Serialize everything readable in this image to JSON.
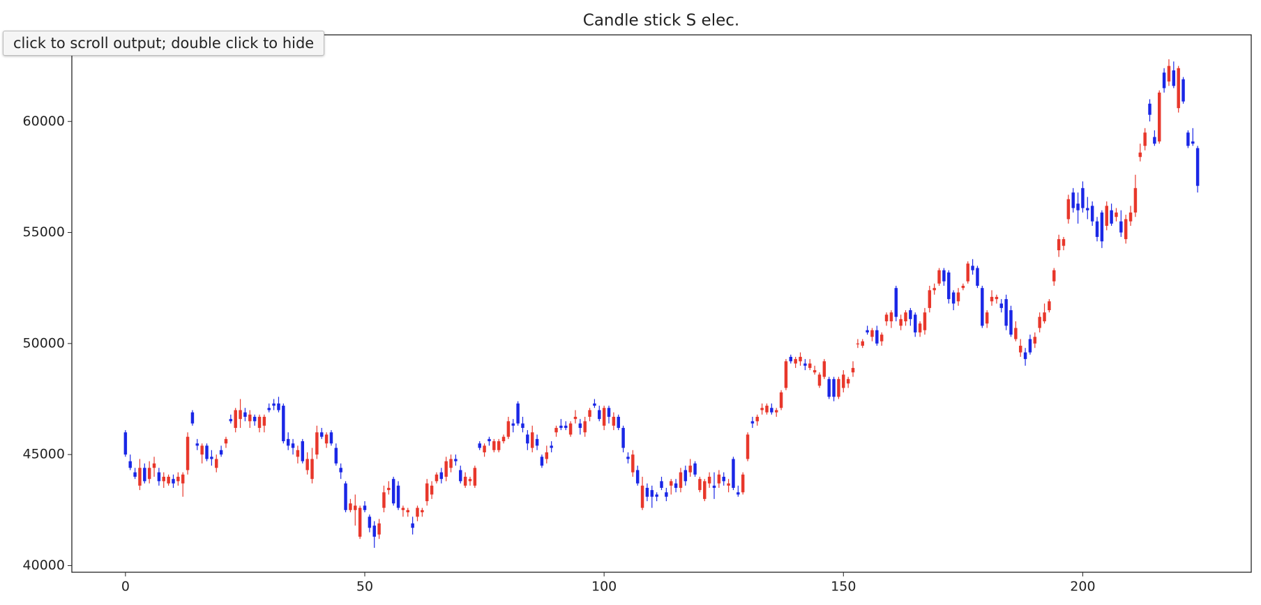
{
  "ui": {
    "tooltip": "click to scroll output; double click to hide"
  },
  "chart_data": {
    "type": "candlestick",
    "title": "Candle stick S elec.",
    "up_color": "#e8372b",
    "down_color": "#1a27e6",
    "grid": false,
    "xlim": [
      -11.2,
      235.2
    ],
    "ylim": [
      39700,
      63900
    ],
    "xticks": [
      0,
      50,
      100,
      150,
      200
    ],
    "yticks": [
      40000,
      45000,
      50000,
      55000,
      60000
    ],
    "x": [
      0,
      1,
      2,
      3,
      4,
      5,
      6,
      7,
      8,
      9,
      10,
      11,
      12,
      13,
      14,
      15,
      16,
      17,
      18,
      19,
      20,
      21,
      22,
      23,
      24,
      25,
      26,
      27,
      28,
      29,
      30,
      31,
      32,
      33,
      34,
      35,
      36,
      37,
      38,
      39,
      40,
      41,
      42,
      43,
      44,
      45,
      46,
      47,
      48,
      49,
      50,
      51,
      52,
      53,
      54,
      55,
      56,
      57,
      58,
      59,
      60,
      61,
      62,
      63,
      64,
      65,
      66,
      67,
      68,
      69,
      70,
      71,
      72,
      73,
      74,
      75,
      76,
      77,
      78,
      79,
      80,
      81,
      82,
      83,
      84,
      85,
      86,
      87,
      88,
      89,
      90,
      91,
      92,
      93,
      94,
      95,
      96,
      97,
      98,
      99,
      100,
      101,
      102,
      103,
      104,
      105,
      106,
      107,
      108,
      109,
      110,
      111,
      112,
      113,
      114,
      115,
      116,
      117,
      118,
      119,
      120,
      121,
      122,
      123,
      124,
      125,
      126,
      127,
      128,
      129,
      130,
      131,
      132,
      133,
      134,
      135,
      136,
      137,
      138,
      139,
      140,
      141,
      142,
      143,
      144,
      145,
      146,
      147,
      148,
      149,
      150,
      151,
      152,
      153,
      154,
      155,
      156,
      157,
      158,
      159,
      160,
      161,
      162,
      163,
      164,
      165,
      166,
      167,
      168,
      169,
      170,
      171,
      172,
      173,
      174,
      175,
      176,
      177,
      178,
      179,
      180,
      181,
      182,
      183,
      184,
      185,
      186,
      187,
      188,
      189,
      190,
      191,
      192,
      193,
      194,
      195,
      196,
      197,
      198,
      199,
      200,
      201,
      202,
      203,
      204,
      205,
      206,
      207,
      208,
      209,
      210,
      211,
      212,
      213,
      214,
      215,
      216,
      217,
      218,
      219,
      220,
      221,
      222,
      223,
      224
    ],
    "open": [
      46000,
      44700,
      44200,
      43600,
      44400,
      43900,
      44400,
      44200,
      43800,
      43700,
      43900,
      43800,
      43700,
      44300,
      46900,
      45500,
      45000,
      45400,
      44900,
      44400,
      45200,
      45500,
      46600,
      46200,
      46600,
      46900,
      46500,
      46700,
      46200,
      46300,
      47100,
      47300,
      47300,
      47200,
      45700,
      45500,
      44900,
      45600,
      44300,
      43900,
      45000,
      46000,
      45500,
      46000,
      45300,
      44400,
      43700,
      42500,
      42500,
      41300,
      42700,
      42200,
      41800,
      41400,
      42600,
      43400,
      43900,
      43600,
      42500,
      42400,
      41900,
      42200,
      42400,
      42900,
      43200,
      43800,
      44200,
      44000,
      44400,
      44800,
      44300,
      43600,
      43800,
      43600,
      45500,
      45100,
      45700,
      45200,
      45200,
      45600,
      45800,
      46400,
      47300,
      46400,
      45900,
      45300,
      45700,
      44900,
      44800,
      45400,
      46000,
      46300,
      46300,
      45900,
      46600,
      46400,
      46000,
      46700,
      47300,
      47000,
      46300,
      47100,
      46300,
      46700,
      46200,
      44900,
      44200,
      44300,
      42600,
      43500,
      43400,
      43200,
      43800,
      43300,
      43600,
      43700,
      43500,
      44300,
      44200,
      44600,
      43400,
      43000,
      43700,
      43600,
      43700,
      44000,
      43600,
      44800,
      43300,
      43300,
      44800,
      46500,
      46500,
      47000,
      46900,
      47100,
      46900,
      47100,
      48000,
      49400,
      49100,
      49200,
      49100,
      48900,
      48700,
      48100,
      48500,
      48400,
      48400,
      47600,
      48000,
      48200,
      48700,
      50000,
      49900,
      50600,
      50300,
      50600,
      50100,
      51000,
      51000,
      52500,
      50800,
      51000,
      51500,
      51300,
      50500,
      50600,
      51600,
      52400,
      52700,
      53300,
      53200,
      52300,
      51900,
      52500,
      52800,
      53500,
      53400,
      52500,
      50900,
      51900,
      52000,
      51800,
      52000,
      51500,
      50200,
      49600,
      49600,
      50200,
      50000,
      50700,
      51000,
      51500,
      52800,
      54200,
      54400,
      55600,
      56800,
      56300,
      57000,
      56100,
      56200,
      55500,
      55900,
      55300,
      56000,
      55700,
      55500,
      54700,
      55500,
      55900,
      58400,
      58900,
      60800,
      59300,
      59100,
      62200,
      61800,
      62300,
      60600,
      61900,
      59500,
      59100,
      58800
    ],
    "high": [
      46100,
      45000,
      44400,
      44800,
      44600,
      44700,
      44900,
      44400,
      44200,
      44100,
      44100,
      44200,
      44200,
      46000,
      47000,
      45700,
      45500,
      45500,
      45200,
      45000,
      45400,
      45800,
      46800,
      47100,
      47500,
      47100,
      47000,
      46800,
      46800,
      46800,
      47300,
      47500,
      47600,
      47300,
      46000,
      45700,
      45400,
      45700,
      45100,
      45300,
      46300,
      46200,
      46000,
      46100,
      45500,
      44600,
      43800,
      43000,
      43200,
      42700,
      42900,
      42300,
      42000,
      42100,
      43600,
      43800,
      44000,
      43800,
      42700,
      42600,
      42200,
      42700,
      42600,
      43900,
      43800,
      44200,
      44400,
      44900,
      45000,
      45000,
      44500,
      44200,
      44000,
      44500,
      45600,
      45500,
      45800,
      45700,
      45700,
      45900,
      46700,
      46600,
      47400,
      46700,
      46100,
      46300,
      45900,
      45000,
      45400,
      45600,
      46300,
      46600,
      46500,
      46500,
      47000,
      46600,
      46700,
      47100,
      47500,
      47200,
      47200,
      47200,
      46900,
      46800,
      46300,
      45100,
      45200,
      44500,
      44000,
      43700,
      43600,
      43300,
      44000,
      43500,
      43900,
      43900,
      44400,
      44500,
      44800,
      44700,
      44000,
      43900,
      44200,
      44200,
      44300,
      44200,
      43900,
      44900,
      43600,
      44200,
      46000,
      46700,
      46800,
      47300,
      47300,
      47300,
      47100,
      47900,
      49300,
      49500,
      49400,
      49600,
      49300,
      49300,
      49000,
      48700,
      49300,
      48500,
      48500,
      48500,
      48800,
      48500,
      49200,
      50200,
      50200,
      50800,
      50700,
      50800,
      50500,
      51400,
      51500,
      52600,
      51300,
      51500,
      51600,
      51400,
      51000,
      51600,
      52600,
      52700,
      53400,
      53400,
      53300,
      52400,
      52500,
      52700,
      53700,
      53800,
      53500,
      52600,
      51500,
      52400,
      52200,
      52000,
      52200,
      51700,
      51000,
      50200,
      49800,
      50400,
      50500,
      51400,
      51800,
      52000,
      53400,
      54900,
      54800,
      56700,
      57000,
      56800,
      57300,
      56600,
      56400,
      55700,
      56000,
      56400,
      56300,
      56100,
      56000,
      55800,
      56200,
      57600,
      59000,
      59700,
      61000,
      59600,
      61400,
      62400,
      62800,
      62700,
      62500,
      62000,
      59600,
      59700,
      58900
    ],
    "low": [
      44900,
      44300,
      43900,
      43400,
      43700,
      43700,
      44000,
      43600,
      43500,
      43600,
      43500,
      43600,
      43100,
      44100,
      46300,
      45200,
      44600,
      44700,
      44500,
      44200,
      44900,
      45300,
      46400,
      46000,
      46200,
      46500,
      46200,
      46300,
      46000,
      46000,
      46900,
      47000,
      46900,
      45500,
      45200,
      45000,
      44600,
      44600,
      44100,
      43700,
      44800,
      45700,
      45300,
      45400,
      44500,
      43900,
      42400,
      42400,
      41800,
      41200,
      42400,
      41500,
      40800,
      41200,
      42400,
      43200,
      42700,
      42500,
      42200,
      42200,
      41400,
      42000,
      42200,
      42700,
      43000,
      43700,
      43700,
      43800,
      44200,
      44500,
      43700,
      43500,
      43600,
      43500,
      45200,
      44900,
      45400,
      45100,
      45100,
      45500,
      45700,
      46000,
      46300,
      46000,
      45200,
      45100,
      45200,
      44400,
      44600,
      45100,
      45800,
      46100,
      46100,
      45800,
      46400,
      45900,
      45800,
      46500,
      47100,
      46500,
      46100,
      46400,
      46100,
      46100,
      45100,
      44600,
      44000,
      43600,
      42500,
      42900,
      42600,
      42900,
      43400,
      42900,
      43200,
      43300,
      43300,
      43600,
      44000,
      44000,
      43300,
      42900,
      43500,
      43000,
      43500,
      43600,
      43300,
      43400,
      43100,
      43200,
      44700,
      46200,
      46300,
      46800,
      46800,
      46800,
      46700,
      47000,
      47900,
      49100,
      48900,
      49000,
      48800,
      48800,
      48600,
      48000,
      48400,
      47500,
      47400,
      47500,
      47800,
      48000,
      48500,
      49800,
      49800,
      50400,
      50100,
      49900,
      49900,
      50800,
      50700,
      51000,
      50600,
      50800,
      50800,
      50300,
      50300,
      50400,
      51400,
      52200,
      52600,
      52600,
      51800,
      51500,
      51700,
      52400,
      52700,
      53100,
      52500,
      50700,
      50700,
      51700,
      51800,
      51400,
      50600,
      50300,
      50100,
      49400,
      49000,
      49500,
      49800,
      50500,
      50900,
      51400,
      52600,
      53900,
      54200,
      55400,
      55900,
      55400,
      55900,
      55600,
      55300,
      54600,
      54300,
      55100,
      55300,
      55500,
      54800,
      54500,
      55300,
      55700,
      58200,
      58700,
      60000,
      58900,
      59000,
      61300,
      61600,
      61500,
      60400,
      60800,
      58800,
      58900,
      56800
    ],
    "close": [
      45000,
      44400,
      44000,
      44400,
      43800,
      44400,
      44600,
      43800,
      44000,
      44000,
      43700,
      44000,
      44100,
      45800,
      46400,
      45400,
      45400,
      44800,
      44800,
      44800,
      45000,
      45700,
      46500,
      47000,
      47000,
      46700,
      46800,
      46500,
      46700,
      46700,
      47000,
      47200,
      47000,
      45600,
      45400,
      45300,
      45200,
      44700,
      44800,
      44800,
      46000,
      45800,
      45900,
      45500,
      44600,
      44200,
      42500,
      42800,
      42700,
      42600,
      42500,
      41700,
      41300,
      41900,
      43300,
      43500,
      42800,
      42600,
      42600,
      42500,
      41700,
      42600,
      42500,
      43700,
      43600,
      44100,
      43900,
      44700,
      44800,
      44700,
      43800,
      44000,
      43900,
      44400,
      45300,
      45400,
      45600,
      45600,
      45600,
      45800,
      46500,
      46300,
      46400,
      46200,
      45500,
      46000,
      45400,
      44500,
      45100,
      45300,
      46200,
      46200,
      46200,
      46400,
      46700,
      46200,
      46500,
      47000,
      47200,
      46600,
      47100,
      46700,
      46700,
      46200,
      45300,
      44800,
      45000,
      43700,
      43600,
      43100,
      43100,
      43100,
      43500,
      43100,
      43800,
      43500,
      44200,
      43800,
      44500,
      44100,
      43900,
      43800,
      44000,
      43500,
      44100,
      43800,
      43700,
      43500,
      43200,
      44100,
      45900,
      46400,
      46700,
      47100,
      47200,
      46900,
      47000,
      47800,
      49200,
      49200,
      49300,
      49400,
      49000,
      49100,
      48800,
      48600,
      49200,
      47600,
      47600,
      48400,
      48600,
      48400,
      48900,
      50000,
      50100,
      50500,
      50600,
      50000,
      50400,
      51300,
      51400,
      51200,
      51100,
      51400,
      51100,
      50500,
      50900,
      51400,
      52400,
      52500,
      53300,
      52800,
      52000,
      51800,
      52300,
      52600,
      53600,
      53300,
      52600,
      50800,
      51400,
      52100,
      52100,
      51600,
      50800,
      50400,
      50700,
      49900,
      49300,
      49600,
      50300,
      51200,
      51400,
      51900,
      53300,
      54700,
      54700,
      56500,
      56100,
      56000,
      56100,
      56000,
      55500,
      54800,
      54600,
      56200,
      55400,
      55900,
      55000,
      55600,
      55900,
      57000,
      58600,
      59500,
      60300,
      59000,
      61300,
      61500,
      62500,
      61600,
      62400,
      60900,
      58900,
      59000,
      57100
    ]
  }
}
